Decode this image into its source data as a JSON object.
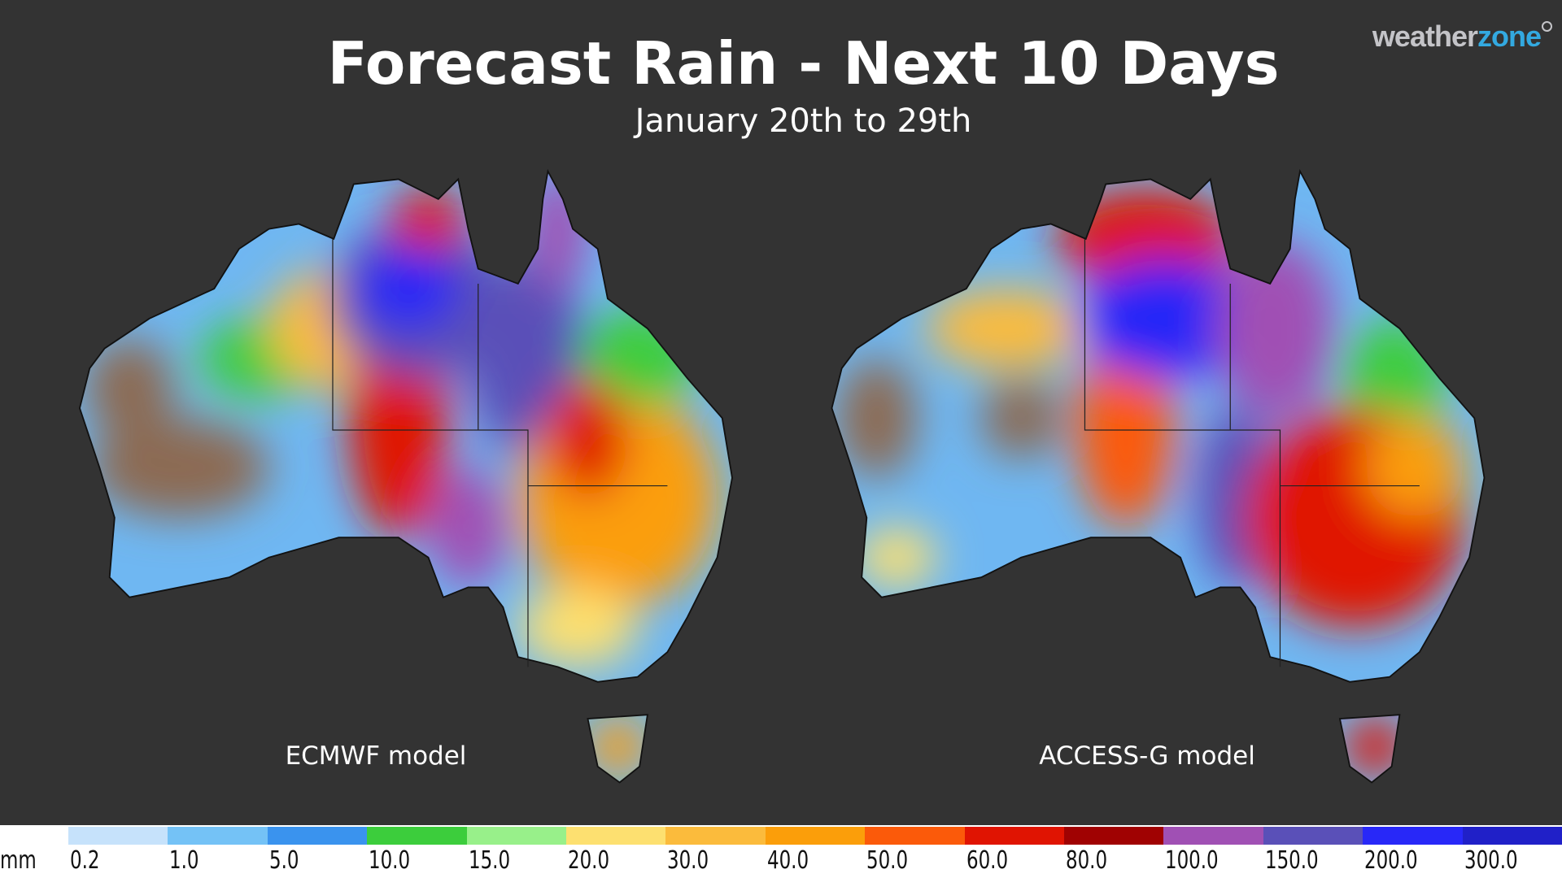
{
  "header": {
    "title": "Forecast Rain - Next 10 Days",
    "subtitle": "January 20th to 29th"
  },
  "logo": {
    "text_main": "weather",
    "text_accent": "zone",
    "accent_color": "#33a9e0"
  },
  "maps": [
    {
      "label": "ECMWF model",
      "region": "Australia"
    },
    {
      "label": "ACCESS-G model",
      "region": "Australia"
    }
  ],
  "legend": {
    "unit": "mm",
    "items": [
      {
        "value": "0.2",
        "color": "#c6e2fb"
      },
      {
        "value": "1.0",
        "color": "#74c2f6"
      },
      {
        "value": "5.0",
        "color": "#3a93ee"
      },
      {
        "value": "10.0",
        "color": "#3ccd3c"
      },
      {
        "value": "15.0",
        "color": "#98f08a"
      },
      {
        "value": "20.0",
        "color": "#fde070"
      },
      {
        "value": "30.0",
        "color": "#fbbb3c"
      },
      {
        "value": "40.0",
        "color": "#fb9e0a"
      },
      {
        "value": "50.0",
        "color": "#fb5a0a"
      },
      {
        "value": "60.0",
        "color": "#e01402"
      },
      {
        "value": "80.0",
        "color": "#a00202"
      },
      {
        "value": "100.0",
        "color": "#a050b4"
      },
      {
        "value": "150.0",
        "color": "#5a50b8"
      },
      {
        "value": "200.0",
        "color": "#2828f8"
      },
      {
        "value": "300.0",
        "color": "#2020c8"
      }
    ]
  }
}
